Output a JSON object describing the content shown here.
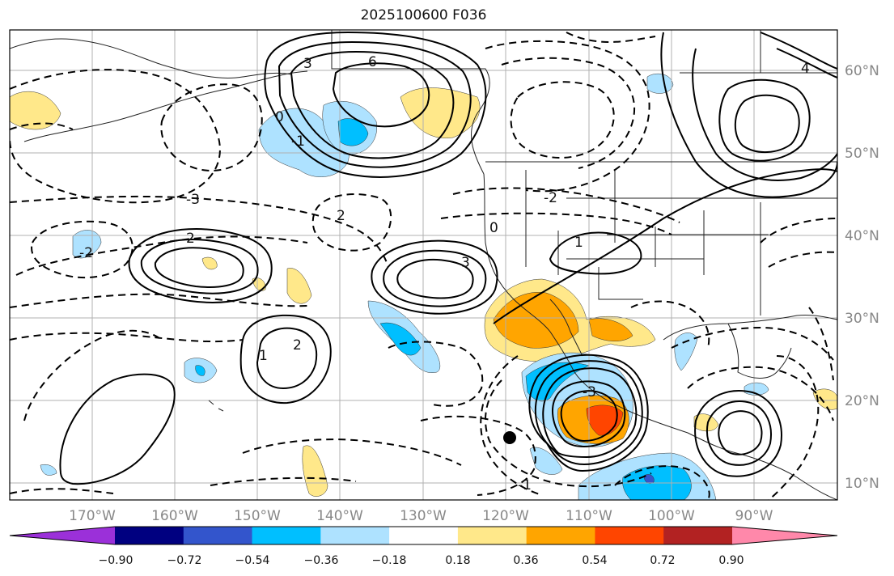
{
  "title": "2025100600 F036",
  "map": {
    "lon_labels": [
      "170°W",
      "160°W",
      "150°W",
      "140°W",
      "130°W",
      "120°W",
      "110°W",
      "100°W",
      "90°W"
    ],
    "lat_labels": [
      "60°N",
      "50°N",
      "40°N",
      "30°N",
      "20°N",
      "10°N"
    ],
    "grid": true,
    "marker": "filled black dot"
  },
  "contour_labels": [
    "6",
    "3",
    "0",
    "-1",
    "-2",
    "-3",
    "4",
    "2",
    "1",
    "2",
    "-3",
    "2",
    "3",
    "0",
    "1",
    "-2",
    "-1"
  ],
  "colorbar": {
    "ticks": [
      "−0.90",
      "−0.72",
      "−0.54",
      "−0.36",
      "−0.18",
      "0.18",
      "0.36",
      "0.54",
      "0.72",
      "0.90"
    ],
    "colors": [
      "#9b30d9",
      "#000080",
      "#3355cc",
      "#00bfff",
      "#aee2ff",
      "#ffffff",
      "#ffe88a",
      "#ffa500",
      "#ff4500",
      "#b22222",
      "#ff88aa"
    ]
  }
}
